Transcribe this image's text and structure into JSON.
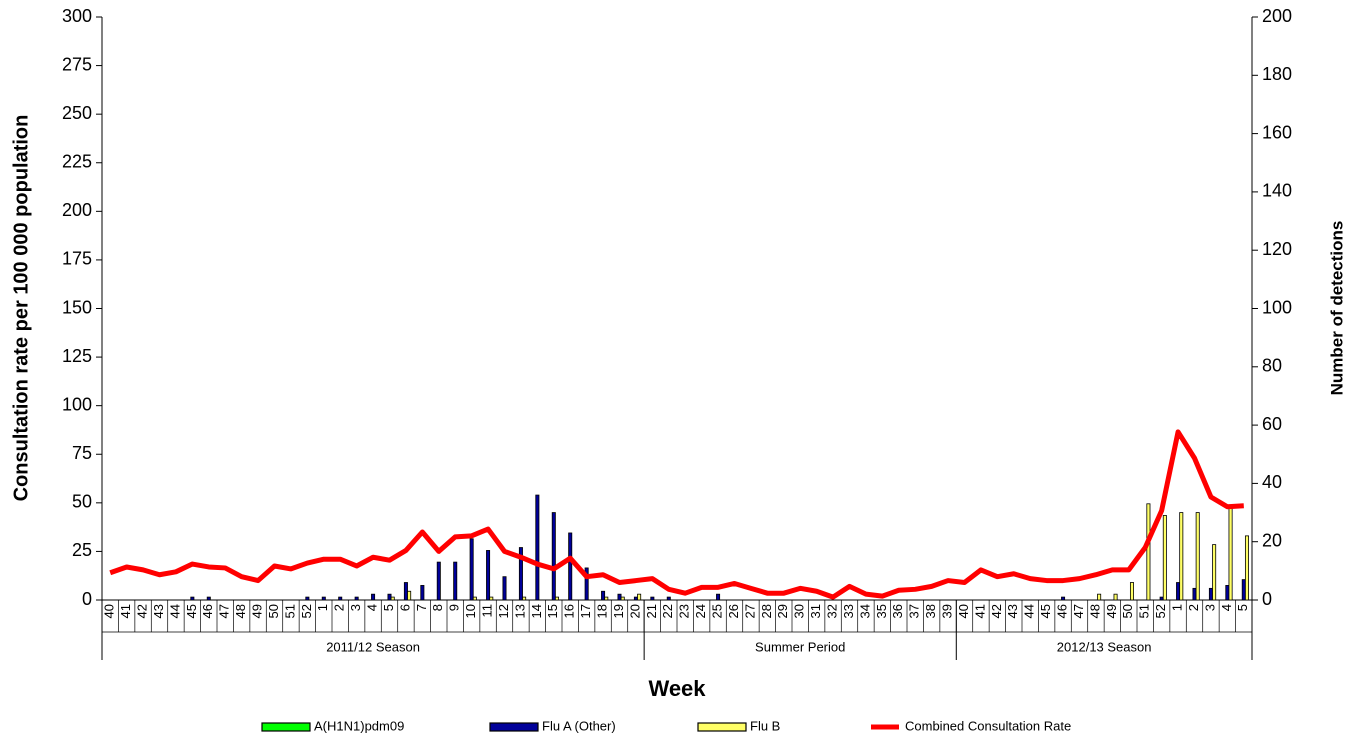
{
  "chart_data": {
    "type": "bar-line",
    "x_label": "Week",
    "y_label": "Consultation rate per 100 000 population",
    "y2_label": "Number of detections",
    "categories": [
      "40",
      "41",
      "42",
      "43",
      "44",
      "45",
      "46",
      "47",
      "48",
      "49",
      "50",
      "51",
      "52",
      "1",
      "2",
      "3",
      "4",
      "5",
      "6",
      "7",
      "8",
      "9",
      "10",
      "11",
      "12",
      "13",
      "14",
      "15",
      "16",
      "17",
      "18",
      "19",
      "20",
      "21",
      "22",
      "23",
      "24",
      "25",
      "26",
      "27",
      "28",
      "29",
      "30",
      "31",
      "32",
      "33",
      "34",
      "35",
      "36",
      "37",
      "38",
      "39",
      "40",
      "41",
      "42",
      "43",
      "44",
      "45",
      "46",
      "47",
      "48",
      "49",
      "50",
      "51",
      "52",
      "1",
      "2",
      "3",
      "4",
      "5"
    ],
    "groups": [
      {
        "label": "2011/12 Season",
        "count": 33
      },
      {
        "label": "Summer Period",
        "count": 19
      },
      {
        "label": "2012/13 Season",
        "count": 18
      }
    ],
    "ylim": [
      0,
      300
    ],
    "yticks": [
      0,
      25,
      50,
      75,
      100,
      125,
      150,
      175,
      200,
      225,
      250,
      275,
      300
    ],
    "y2lim": [
      0,
      200
    ],
    "y2ticks": [
      0,
      20,
      40,
      60,
      80,
      100,
      120,
      140,
      160,
      180,
      200
    ],
    "series": [
      {
        "name": "A(H1N1)pdm09",
        "type": "bar",
        "axis": "y2",
        "color": "#00ff00",
        "values": [
          0,
          0,
          0,
          0,
          0,
          0,
          0,
          0,
          0,
          0,
          0,
          0,
          0,
          0,
          0,
          0,
          0,
          0,
          0,
          0,
          0,
          0,
          0,
          0,
          0,
          0,
          0,
          0,
          0,
          0,
          0,
          0,
          0,
          0,
          0,
          0,
          0,
          0,
          0,
          0,
          0,
          0,
          0,
          0,
          0,
          0,
          0,
          0,
          0,
          0,
          0,
          0,
          0,
          0,
          0,
          0,
          0,
          0,
          0,
          0,
          0,
          0,
          0,
          0,
          0,
          0,
          0,
          0,
          0,
          0
        ]
      },
      {
        "name": "Flu A (Other)",
        "type": "bar",
        "axis": "y2",
        "color": "#000099",
        "values": [
          0,
          0,
          0,
          0,
          0,
          1,
          1,
          0,
          0,
          0,
          0,
          0,
          1,
          1,
          1,
          1,
          2,
          2,
          6,
          5,
          13,
          13,
          21,
          17,
          8,
          18,
          36,
          30,
          23,
          11,
          3,
          2,
          1,
          1,
          1,
          0,
          0,
          2,
          0,
          0,
          0,
          0,
          0,
          0,
          0,
          0,
          0,
          0,
          0,
          0,
          0,
          0,
          0,
          0,
          0,
          0,
          0,
          0,
          1,
          0,
          0,
          0,
          0,
          0,
          1,
          6,
          4,
          4,
          5,
          7
        ]
      },
      {
        "name": "Flu B",
        "type": "bar",
        "axis": "y2",
        "color": "#ffff66",
        "values": [
          0,
          0,
          0,
          0,
          0,
          0,
          0,
          0,
          0,
          0,
          0,
          0,
          0,
          0,
          0,
          0,
          0,
          1,
          3,
          0,
          0,
          0,
          1,
          1,
          0,
          1,
          0,
          1,
          0,
          0,
          1,
          1,
          2,
          0,
          0,
          0,
          0,
          0,
          0,
          0,
          0,
          0,
          0,
          0,
          0,
          0,
          0,
          0,
          0,
          0,
          0,
          0,
          0,
          0,
          0,
          0,
          0,
          0,
          0,
          0,
          2,
          2,
          6,
          33,
          29,
          30,
          30,
          19,
          32,
          22
        ]
      },
      {
        "name": "Combined Consultation Rate",
        "type": "line",
        "axis": "y",
        "color": "#ff0000",
        "values": [
          14,
          17,
          15.5,
          13,
          14.5,
          18.5,
          17,
          16.5,
          12,
          10,
          17.5,
          16,
          19,
          21,
          21,
          17.5,
          22,
          20.5,
          25.5,
          35,
          25,
          32.5,
          33,
          36.5,
          25,
          22,
          18.5,
          16,
          21.5,
          12,
          13,
          9,
          10,
          11,
          5.5,
          3.5,
          6.5,
          6.5,
          8.5,
          6,
          3.5,
          3.5,
          6,
          4.5,
          1.5,
          7,
          3,
          2,
          5,
          5.5,
          7,
          10,
          9,
          15.5,
          12,
          13.5,
          11,
          10,
          10,
          11,
          13,
          15.5,
          15.5,
          27,
          46,
          86.5,
          73,
          53,
          48,
          48.5
        ]
      }
    ]
  }
}
